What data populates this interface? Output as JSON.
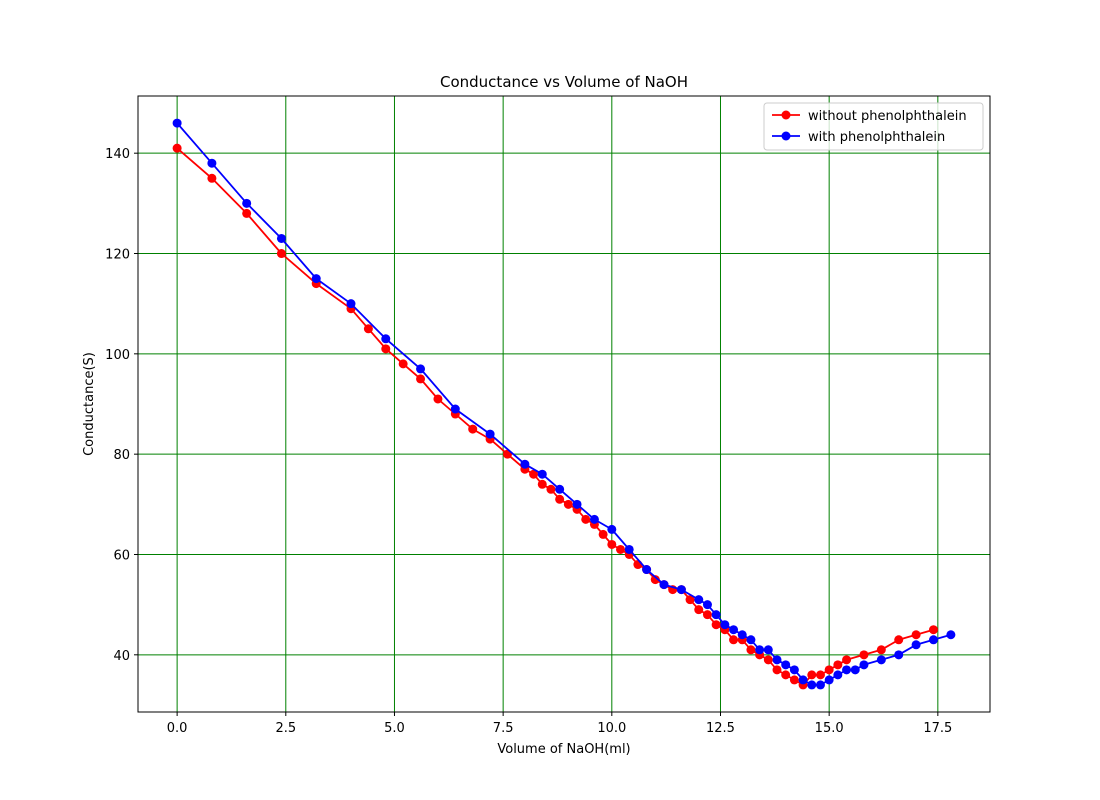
{
  "chart_data": {
    "type": "line",
    "title": "Conductance vs Volume of NaOH",
    "xlabel": "Volume of NaOH(ml)",
    "ylabel": "Conductance(S)",
    "xlim": [
      -0.9,
      18.7
    ],
    "ylim": [
      28.6,
      151.4
    ],
    "xticks": [
      0.0,
      2.5,
      5.0,
      7.5,
      10.0,
      12.5,
      15.0,
      17.5
    ],
    "xtick_labels": [
      "0.0",
      "2.5",
      "5.0",
      "7.5",
      "10.0",
      "12.5",
      "15.0",
      "17.5"
    ],
    "yticks": [
      40,
      60,
      80,
      100,
      120,
      140
    ],
    "ytick_labels": [
      "40",
      "60",
      "80",
      "100",
      "120",
      "140"
    ],
    "grid": true,
    "grid_color": "#008000",
    "legend_position": "top-right",
    "series": [
      {
        "name": "without phenolphthalein",
        "color": "#ff0000",
        "x": [
          0.0,
          0.8,
          1.6,
          2.4,
          3.2,
          4.0,
          4.4,
          4.8,
          5.2,
          5.6,
          6.0,
          6.4,
          6.8,
          7.2,
          7.6,
          8.0,
          8.2,
          8.4,
          8.6,
          8.8,
          9.0,
          9.2,
          9.4,
          9.6,
          9.8,
          10.0,
          10.2,
          10.4,
          10.6,
          10.8,
          11.0,
          11.2,
          11.4,
          11.6,
          11.8,
          12.0,
          12.2,
          12.4,
          12.6,
          12.8,
          13.0,
          13.2,
          13.4,
          13.6,
          13.8,
          14.0,
          14.2,
          14.4,
          14.6,
          14.8,
          15.0,
          15.2,
          15.4,
          15.8,
          16.2,
          16.6,
          17.0,
          17.4
        ],
        "y": [
          141,
          135,
          128,
          120,
          114,
          109,
          105,
          101,
          98,
          95,
          91,
          88,
          85,
          83,
          80,
          77,
          76,
          74,
          73,
          71,
          70,
          69,
          67,
          66,
          64,
          62,
          61,
          60,
          58,
          57,
          55,
          54,
          53,
          53,
          51,
          49,
          48,
          46,
          45,
          43,
          43,
          41,
          40,
          39,
          37,
          36,
          35,
          34,
          36,
          36,
          37,
          38,
          39,
          40,
          41,
          43,
          44,
          45
        ]
      },
      {
        "name": "with phenolphthalein",
        "color": "#0000ff",
        "x": [
          0.0,
          0.8,
          1.6,
          2.4,
          3.2,
          4.0,
          4.8,
          5.6,
          6.4,
          7.2,
          8.0,
          8.4,
          8.8,
          9.2,
          9.6,
          10.0,
          10.4,
          10.8,
          11.2,
          11.6,
          12.0,
          12.2,
          12.4,
          12.6,
          12.8,
          13.0,
          13.2,
          13.4,
          13.6,
          13.8,
          14.0,
          14.2,
          14.4,
          14.6,
          14.8,
          15.0,
          15.2,
          15.4,
          15.6,
          15.8,
          16.2,
          16.6,
          17.0,
          17.4,
          17.8
        ],
        "y": [
          146,
          138,
          130,
          123,
          115,
          110,
          103,
          97,
          89,
          84,
          78,
          76,
          73,
          70,
          67,
          65,
          61,
          57,
          54,
          53,
          51,
          50,
          48,
          46,
          45,
          44,
          43,
          41,
          41,
          39,
          38,
          37,
          35,
          34,
          34,
          35,
          36,
          37,
          37,
          38,
          39,
          40,
          42,
          43,
          44
        ]
      }
    ]
  }
}
